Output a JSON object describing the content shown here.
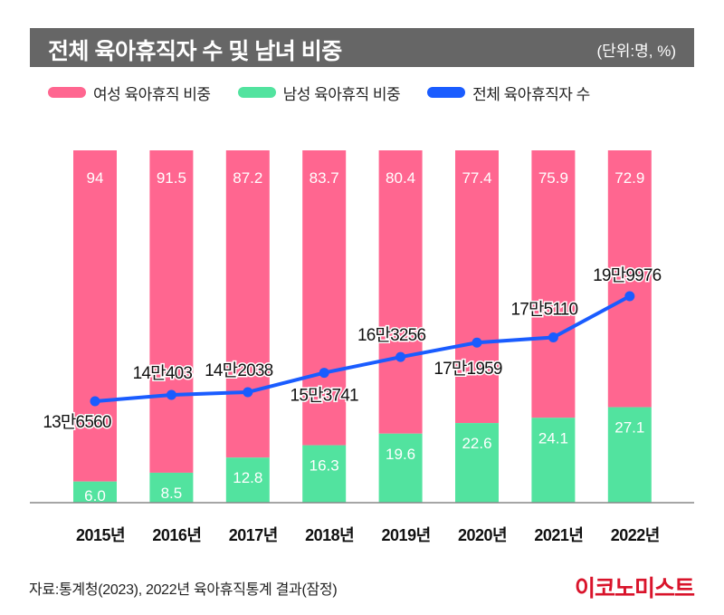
{
  "header": {
    "title": "전체 육아휴직자 수 및 남녀 비중",
    "unit": "(단위:명, %)"
  },
  "legend": [
    {
      "label": "여성 육아휴직 비중",
      "color": "#ff6690"
    },
    {
      "label": "남성 육아휴직 비중",
      "color": "#52e39f"
    },
    {
      "label": "전체 육아휴직자 수",
      "color": "#1a5cff"
    }
  ],
  "footer": {
    "source": "자료:통계청(2023), 2022년 육아휴직통계 결과(잠정)",
    "brand": "이코노미스트"
  },
  "chart_data": {
    "type": "bar",
    "stacked": true,
    "title": "전체 육아휴직자 수 및 남녀 비중",
    "unit": "명, %",
    "categories": [
      "2015년",
      "2016년",
      "2017년",
      "2018년",
      "2019년",
      "2020년",
      "2021년",
      "2022년"
    ],
    "series": [
      {
        "name": "남성 육아휴직 비중",
        "kind": "bar",
        "color": "#52e39f",
        "values": [
          6.0,
          8.5,
          12.8,
          16.3,
          19.6,
          22.6,
          24.1,
          27.1
        ],
        "labels": [
          "6.0",
          "8.5",
          "12.8",
          "16.3",
          "19.6",
          "22.6",
          "24.1",
          "27.1"
        ]
      },
      {
        "name": "여성 육아휴직 비중",
        "kind": "bar",
        "color": "#ff6690",
        "values": [
          94,
          91.5,
          87.2,
          83.7,
          80.4,
          77.4,
          75.9,
          72.9
        ],
        "labels": [
          "94",
          "91.5",
          "87.2",
          "83.7",
          "80.4",
          "77.4",
          "75.9",
          "72.9"
        ]
      },
      {
        "name": "전체 육아휴직자 수",
        "kind": "line",
        "color": "#1a5cff",
        "values": [
          136560,
          140403,
          142038,
          153741,
          163256,
          171959,
          175110,
          199976
        ],
        "labels": [
          "13만6560",
          "14만403",
          "14만2038",
          "15만3741",
          "16만3256",
          "17만1959",
          "17만5110",
          "19만9976"
        ]
      }
    ],
    "ylim": [
      0,
      100
    ],
    "grid": false,
    "legend_position": "top-left"
  }
}
